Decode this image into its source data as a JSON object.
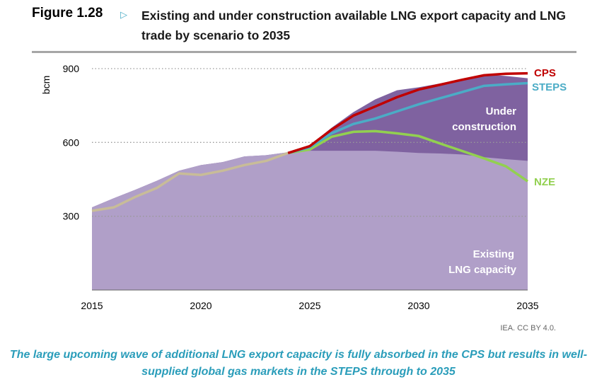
{
  "header": {
    "figure_label": "Figure 1.28",
    "title": "Existing and under construction available LNG export capacity and LNG trade by scenario to 2035"
  },
  "source": "IEA. CC BY 4.0.",
  "caption": "The large upcoming wave of additional LNG export capacity is fully absorbed in the CPS but results in well-supplied global gas markets in the STEPS through to 2035",
  "colors": {
    "existing": "#b09fc8",
    "under_construction": "#7f62a0",
    "CPS": "#c00000",
    "STEPS": "#4bacc6",
    "NZE": "#92d050",
    "historical": "#c8bc98"
  },
  "chart_data": {
    "type": "area",
    "ylabel": "bcm",
    "ylim": [
      0,
      900
    ],
    "yticks": [
      300,
      600,
      900
    ],
    "xlim": [
      2015,
      2035
    ],
    "xticks": [
      2015,
      2020,
      2025,
      2030,
      2035
    ],
    "area_labels": {
      "existing": "Existing LNG capacity",
      "under_construction": "Under construction"
    },
    "years": [
      2015,
      2016,
      2017,
      2018,
      2019,
      2020,
      2021,
      2022,
      2023,
      2024,
      2025,
      2026,
      2027,
      2028,
      2029,
      2030,
      2031,
      2032,
      2033,
      2034,
      2035
    ],
    "existing_capacity": [
      336,
      373,
      408,
      445,
      485,
      508,
      520,
      543,
      548,
      560,
      566,
      566,
      566,
      566,
      562,
      557,
      555,
      551,
      540,
      532,
      525
    ],
    "total_capacity": [
      336,
      373,
      408,
      445,
      485,
      508,
      520,
      543,
      548,
      560,
      588,
      660,
      723,
      775,
      812,
      824,
      840,
      858,
      876,
      870,
      861
    ],
    "historical": {
      "years": [
        2015,
        2016,
        2017,
        2018,
        2019,
        2020,
        2021,
        2022,
        2023,
        2024
      ],
      "values": [
        322,
        336,
        379,
        416,
        474,
        468,
        485,
        508,
        525,
        557
      ]
    },
    "series": [
      {
        "name": "CPS",
        "years": [
          2024,
          2025,
          2026,
          2027,
          2028,
          2029,
          2030,
          2031,
          2032,
          2033,
          2034,
          2035
        ],
        "values": [
          557,
          585,
          652,
          709,
          746,
          784,
          815,
          835,
          855,
          873,
          879,
          881
        ]
      },
      {
        "name": "STEPS",
        "years": [
          2024,
          2025,
          2026,
          2027,
          2028,
          2029,
          2030,
          2031,
          2032,
          2033,
          2034,
          2035
        ],
        "values": [
          557,
          580,
          637,
          675,
          697,
          726,
          755,
          780,
          805,
          830,
          836,
          841
        ]
      },
      {
        "name": "NZE",
        "years": [
          2024,
          2025,
          2026,
          2027,
          2028,
          2029,
          2030,
          2031,
          2032,
          2033,
          2034,
          2035
        ],
        "values": [
          557,
          571,
          623,
          643,
          646,
          637,
          626,
          595,
          565,
          535,
          503,
          442
        ]
      }
    ]
  }
}
